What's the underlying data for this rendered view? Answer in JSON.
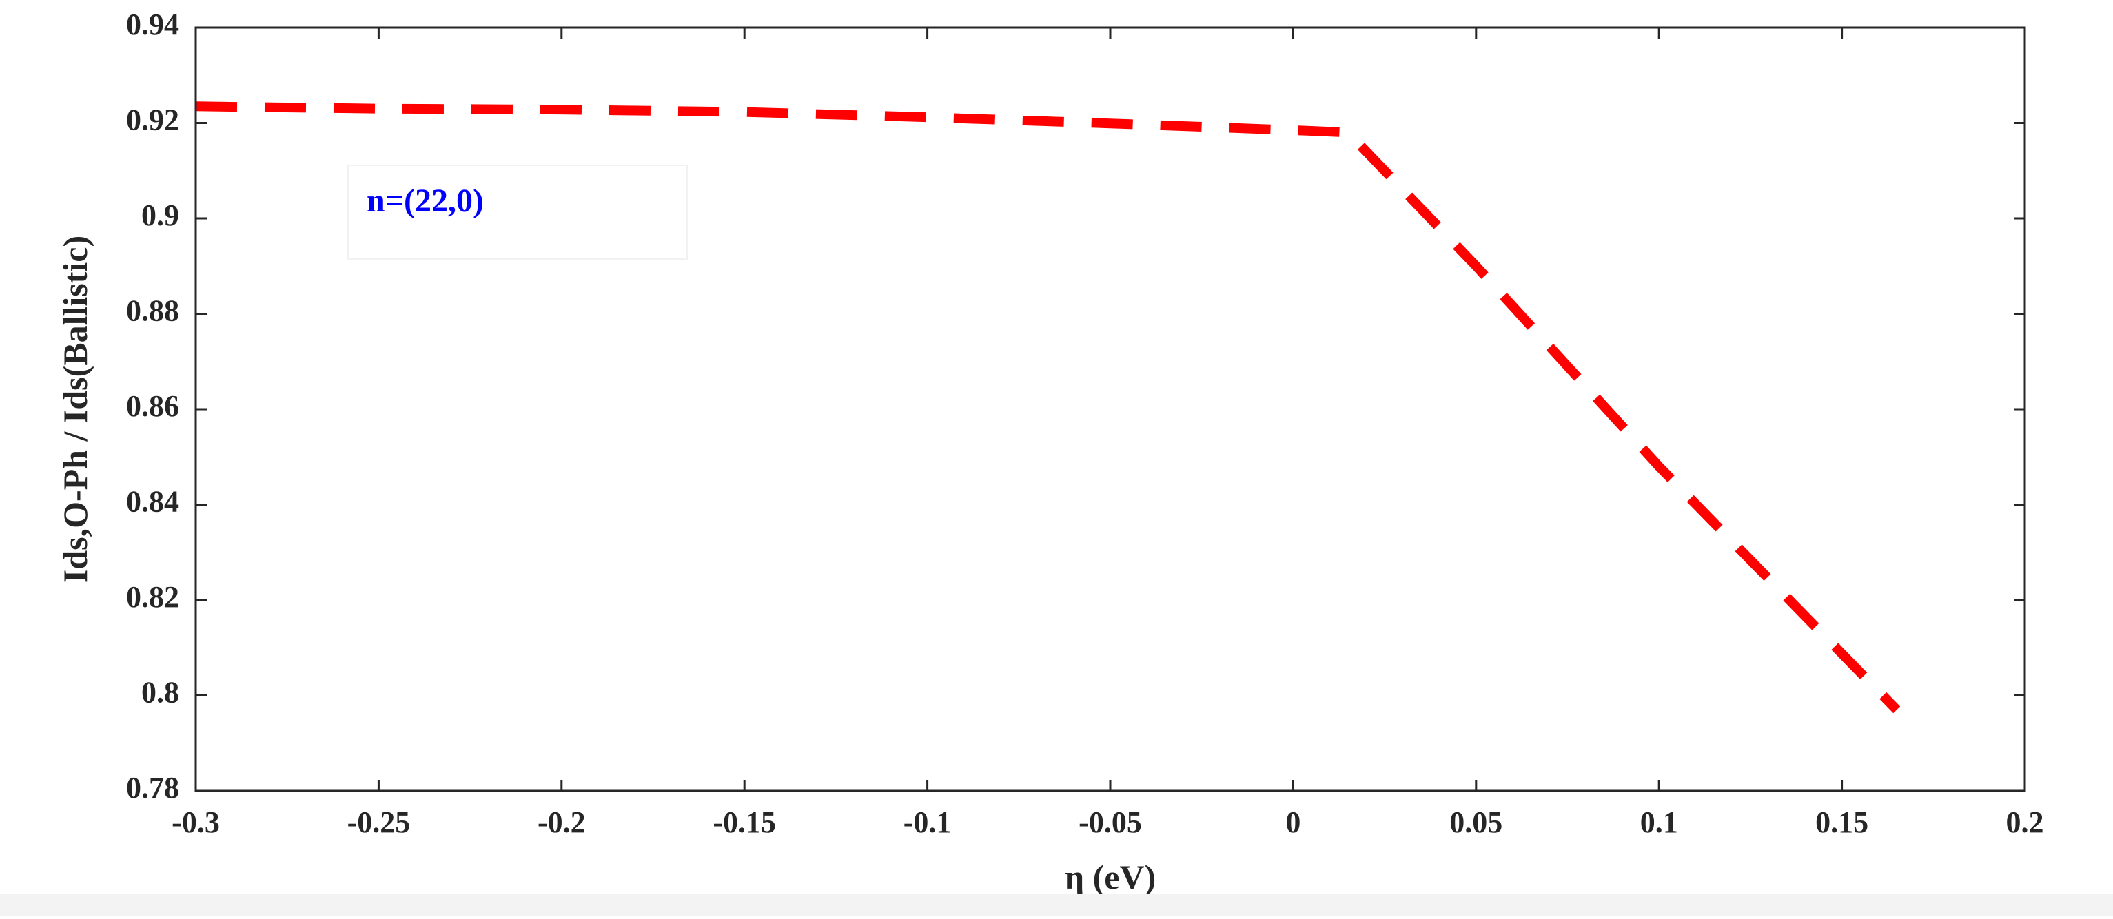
{
  "colors": {
    "background": "#ffffff",
    "axis": "#262626",
    "series": "#ff0000",
    "annotation_text": "#0000ff",
    "annotation_border": "#f2f2f2"
  },
  "chart_data": {
    "type": "line",
    "title": "",
    "xlabel": "η (eV)",
    "ylabel": "Ids,O-Ph / Ids(Ballistic)",
    "xlim": [
      -0.3,
      0.2
    ],
    "ylim": [
      0.78,
      0.94
    ],
    "x_ticks": [
      -0.3,
      -0.25,
      -0.2,
      -0.15,
      -0.1,
      -0.05,
      0,
      0.05,
      0.1,
      0.15,
      0.2
    ],
    "x_tick_labels": [
      "-0.3",
      "-0.25",
      "-0.2",
      "-0.15",
      "-0.1",
      "-0.05",
      "0",
      "0.05",
      "0.1",
      "0.15",
      "0.2"
    ],
    "y_ticks": [
      0.78,
      0.8,
      0.82,
      0.84,
      0.86,
      0.88,
      0.9,
      0.92,
      0.94
    ],
    "y_tick_labels": [
      "0.78",
      "0.8",
      "0.82",
      "0.84",
      "0.86",
      "0.88",
      "0.9",
      "0.92",
      "0.94"
    ],
    "grid": false,
    "line_style": "dashed",
    "series": [
      {
        "x": [
          -0.3,
          -0.25,
          -0.2,
          -0.15,
          -0.1,
          -0.05,
          0,
          0.015,
          0.05,
          0.1,
          0.165
        ],
        "y": [
          0.9235,
          0.923,
          0.9228,
          0.9223,
          0.9212,
          0.9199,
          0.9185,
          0.918,
          0.89,
          0.848,
          0.797
        ]
      }
    ],
    "annotations": [
      {
        "text": "n=(22,0)",
        "x": -0.26,
        "y": 0.9
      }
    ]
  }
}
